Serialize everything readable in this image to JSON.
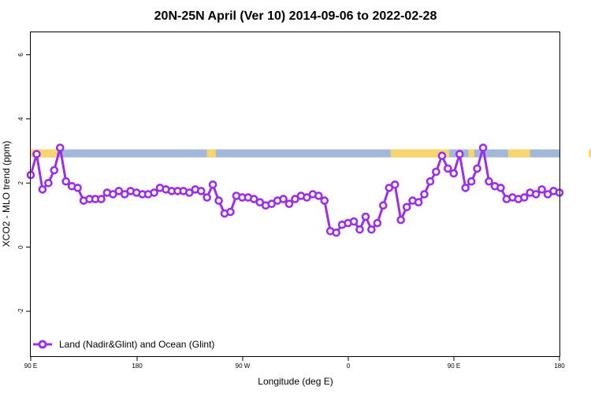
{
  "chart_data": {
    "type": "line",
    "title": "20N-25N April (Ver 10)   2014-09-06 to 2022-02-28",
    "xlabel": "Longitude (deg E)",
    "ylabel": "XCO2 - MLO trend (ppm)",
    "xlim": [
      90,
      450
    ],
    "ylim": [
      -3.4,
      6.7
    ],
    "x_ticks": [
      {
        "value": 90,
        "label": "90 E"
      },
      {
        "value": 180,
        "label": "180"
      },
      {
        "value": 270,
        "label": "90 W"
      },
      {
        "value": 360,
        "label": "0"
      },
      {
        "value": 450,
        "label": "90 E"
      },
      {
        "value": 540,
        "label": "180"
      }
    ],
    "y_ticks": [
      {
        "value": -2,
        "label": "-2"
      },
      {
        "value": 0,
        "label": "0"
      },
      {
        "value": 2,
        "label": "2"
      },
      {
        "value": 4,
        "label": "4"
      },
      {
        "value": 6,
        "label": "6"
      }
    ],
    "colors": {
      "series": "#9b30e6",
      "ocean_band": "#a3b8d8",
      "land_band": "#f7d56e"
    },
    "land_ocean_band": {
      "y_range": [
        2.8,
        3.05
      ],
      "land_segments_deg": [
        [
          90,
          108
        ],
        [
          210,
          216
        ],
        [
          335,
          375
        ],
        [
          388,
          392
        ],
        [
          415,
          430
        ],
        [
          470,
          478
        ]
      ]
    },
    "series": [
      {
        "name": "Land (Nadir&Glint) and Ocean (Glint)",
        "x": [
          90,
          94,
          98,
          102,
          106,
          110,
          114,
          118,
          122,
          126,
          130,
          134,
          138,
          142,
          146,
          150,
          154,
          158,
          162,
          166,
          170,
          174,
          178,
          182,
          186,
          190,
          194,
          198,
          202,
          206,
          210,
          214,
          218,
          222,
          226,
          230,
          234,
          238,
          242,
          246,
          250,
          254,
          258,
          262,
          266,
          270,
          274,
          278,
          282,
          286,
          290,
          294,
          298,
          302,
          306,
          310,
          314,
          318,
          322,
          326,
          330,
          334,
          338,
          342,
          346,
          350,
          354,
          358,
          362,
          366,
          370,
          374,
          378,
          382,
          386,
          390,
          394,
          398,
          402,
          406,
          410,
          414,
          418,
          422,
          426,
          430,
          434,
          438,
          442,
          446,
          450
        ],
        "y": [
          2.25,
          2.9,
          1.8,
          2.0,
          2.4,
          3.1,
          2.05,
          1.9,
          1.85,
          1.45,
          1.5,
          1.5,
          1.5,
          1.7,
          1.65,
          1.75,
          1.65,
          1.75,
          1.7,
          1.65,
          1.65,
          1.7,
          1.85,
          1.8,
          1.75,
          1.75,
          1.75,
          1.7,
          1.8,
          1.75,
          1.55,
          1.95,
          1.45,
          1.05,
          1.1,
          1.6,
          1.55,
          1.55,
          1.5,
          1.4,
          1.3,
          1.35,
          1.45,
          1.5,
          1.35,
          1.5,
          1.6,
          1.55,
          1.65,
          1.6,
          1.45,
          0.5,
          0.45,
          0.7,
          0.75,
          0.8,
          0.55,
          0.95,
          0.55,
          0.75,
          1.3,
          1.85,
          1.95,
          0.85,
          1.25,
          1.45,
          1.4,
          1.65,
          2.05,
          2.35,
          2.85,
          2.45,
          2.3,
          2.9,
          1.85,
          2.05,
          2.45,
          3.1,
          2.05,
          1.9,
          1.85,
          1.5,
          1.55,
          1.5,
          1.55,
          1.7,
          1.65,
          1.8,
          1.65,
          1.75,
          1.7
        ]
      }
    ],
    "legend": {
      "position": "bottom-left"
    },
    "grid": false
  }
}
